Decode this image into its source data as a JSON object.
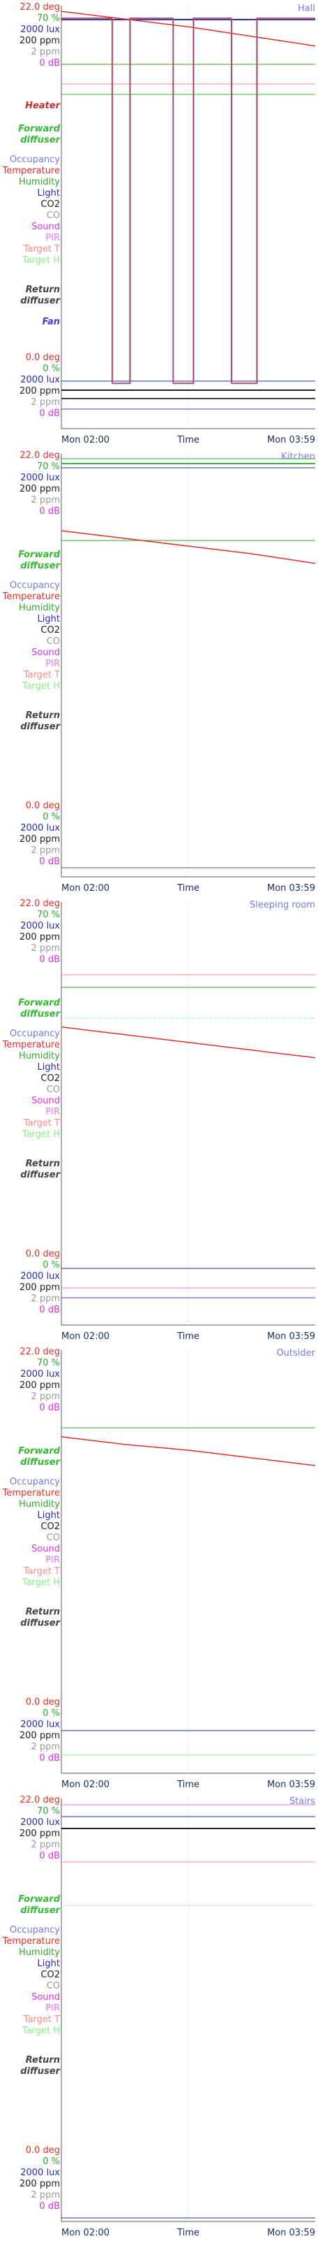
{
  "labels": {
    "top": [
      "22.0 deg",
      "70 %",
      "2000 lux",
      "200 ppm",
      "2 ppm",
      "0 dB"
    ],
    "bottom": [
      "0.0 deg",
      "0 %",
      "2000 lux",
      "200 ppm",
      "2 ppm",
      "0 dB"
    ],
    "heater": "Heater",
    "forward": [
      "Forward",
      "diffuser"
    ],
    "sensors": [
      "Occupancy",
      "Temperature",
      "Humidity",
      "Light",
      "CO2",
      "CO",
      "Sound",
      "PIR",
      "Target T",
      "Target H"
    ],
    "return": [
      "Return",
      "diffuser"
    ],
    "fan": "Fan"
  },
  "colors": {
    "temp": "#e0302a",
    "hum": "#2ea82e",
    "light": "#2a2ab8",
    "co2": "#222222",
    "co": "#999999",
    "sound": "#e030e0",
    "pir": "#ee77ee",
    "targetT": "#ff8888",
    "targetH": "#88ee88",
    "occ": "#7777dd",
    "heater": "#c03030",
    "forward": "#33bb33",
    "ret": "#444444",
    "fan": "#5533cc",
    "axis": "#555555"
  },
  "chart_data": [
    {
      "type": "line",
      "title": "Hall",
      "x_ticks": [
        "Mon 02:00",
        "Time",
        "Mon 03:59"
      ],
      "show_heater": true,
      "show_fan": true,
      "series": [
        {
          "key": "temp",
          "values": [
            21.7,
            21.3,
            20.9,
            20.4,
            19.9
          ]
        },
        {
          "key": "heater_pulses",
          "values": [
            [
              0,
              0.2
            ],
            [
              0.27,
              0.44
            ],
            [
              0.52,
              0.67
            ],
            [
              0.77,
              1.0
            ]
          ]
        }
      ]
    },
    {
      "type": "line",
      "title": "Kitchen",
      "x_ticks": [
        "Mon 02:00",
        "Time",
        "Mon 03:59"
      ],
      "show_heater": false,
      "show_fan": false,
      "series": [
        {
          "key": "temp",
          "values": [
            18.0,
            17.6,
            17.2,
            16.8,
            16.3
          ]
        }
      ]
    },
    {
      "type": "line",
      "title": "Sleeping room",
      "x_ticks": [
        "Mon 02:00",
        "Time",
        "Mon 03:59"
      ],
      "show_heater": false,
      "show_fan": false,
      "series": [
        {
          "key": "temp",
          "values": [
            15.5,
            15.1,
            14.7,
            14.3,
            13.9
          ]
        }
      ]
    },
    {
      "type": "line",
      "title": "Outsider",
      "x_ticks": [
        "Mon 02:00",
        "Time",
        "Mon 03:59"
      ],
      "show_heater": false,
      "show_fan": false,
      "series": [
        {
          "key": "temp",
          "values": [
            17.5,
            17.1,
            16.8,
            16.4,
            16.0
          ]
        }
      ]
    },
    {
      "type": "line",
      "title": "Stairs",
      "x_ticks": [
        "Mon 02:00",
        "Time",
        "Mon 03:59"
      ],
      "show_heater": false,
      "show_fan": false,
      "series": []
    }
  ]
}
